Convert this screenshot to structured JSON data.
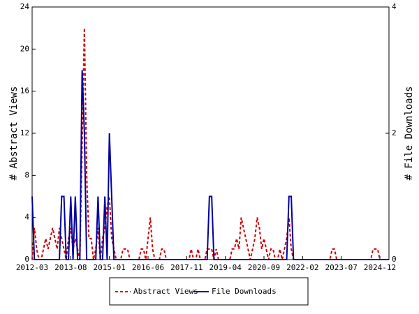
{
  "chart_data": {
    "type": "line",
    "x": [
      "2012-03",
      "2012-04",
      "2012-05",
      "2012-06",
      "2012-07",
      "2012-08",
      "2012-09",
      "2012-10",
      "2012-11",
      "2012-12",
      "2013-01",
      "2013-02",
      "2013-03",
      "2013-04",
      "2013-05",
      "2013-06",
      "2013-07",
      "2013-08",
      "2013-09",
      "2013-10",
      "2013-11",
      "2013-12",
      "2014-01",
      "2014-02",
      "2014-03",
      "2014-04",
      "2014-05",
      "2014-06",
      "2014-07",
      "2014-08",
      "2014-09",
      "2014-10",
      "2014-11",
      "2014-12",
      "2015-01",
      "2015-02",
      "2015-03",
      "2015-04",
      "2015-05",
      "2015-06",
      "2015-07",
      "2015-08",
      "2015-09",
      "2015-10",
      "2015-11",
      "2015-12",
      "2016-01",
      "2016-02",
      "2016-03",
      "2016-04",
      "2016-05",
      "2016-06",
      "2016-07",
      "2016-08",
      "2016-09",
      "2016-10",
      "2016-11",
      "2016-12",
      "2017-01",
      "2017-02",
      "2017-03",
      "2017-04",
      "2017-05",
      "2017-06",
      "2017-07",
      "2017-08",
      "2017-09",
      "2017-10",
      "2017-11",
      "2017-12",
      "2018-01",
      "2018-02",
      "2018-03",
      "2018-04",
      "2018-05",
      "2018-06",
      "2018-07",
      "2018-08",
      "2018-09",
      "2018-10",
      "2018-11",
      "2018-12",
      "2019-01",
      "2019-02",
      "2019-03",
      "2019-04",
      "2019-05",
      "2019-06",
      "2019-07",
      "2019-08",
      "2019-09",
      "2019-10",
      "2019-11",
      "2019-12",
      "2020-01",
      "2020-02",
      "2020-03",
      "2020-04",
      "2020-05",
      "2020-06",
      "2020-07",
      "2020-08",
      "2020-09",
      "2020-10",
      "2020-11",
      "2020-12",
      "2021-01",
      "2021-02",
      "2021-03",
      "2021-04",
      "2021-05",
      "2021-06",
      "2021-07",
      "2021-08",
      "2021-09",
      "2021-10",
      "2021-11",
      "2021-12",
      "2022-01",
      "2022-02",
      "2022-03",
      "2022-04",
      "2022-05",
      "2022-06",
      "2022-07",
      "2022-08",
      "2022-09",
      "2022-10",
      "2022-11",
      "2022-12",
      "2023-01",
      "2023-02",
      "2023-03",
      "2023-04",
      "2023-05",
      "2023-06",
      "2023-07",
      "2023-08",
      "2023-09",
      "2023-10",
      "2023-11",
      "2023-12",
      "2024-01",
      "2024-02",
      "2024-03",
      "2024-04",
      "2024-05",
      "2024-06",
      "2024-07",
      "2024-08",
      "2024-09",
      "2024-10",
      "2024-11",
      "2024-12",
      "2025-01",
      "2025-02",
      "2025-03",
      "2025-04"
    ],
    "xticks": [
      "2012-03",
      "2013-08",
      "2015-01",
      "2016-06",
      "2017-11",
      "2019-04",
      "2020-09",
      "2022-02",
      "2023-07",
      "2024-12"
    ],
    "ylabel": "# Abstract Views",
    "y2label": "# File Downloads",
    "ylim": [
      0,
      24
    ],
    "yticks": [
      0,
      4,
      8,
      12,
      16,
      20,
      24
    ],
    "y2lim": [
      0,
      4
    ],
    "y2ticks": [
      0,
      2,
      4
    ],
    "legend": "bottom",
    "series": [
      {
        "name": "Abstract Views",
        "color": "#cc0000",
        "dashed": true,
        "axis": "y",
        "values": [
          0,
          3,
          1,
          0,
          0,
          1,
          2,
          1,
          2,
          3,
          2,
          1,
          3,
          2,
          1,
          0,
          2,
          3,
          1,
          2,
          1,
          0,
          11,
          22,
          8,
          2,
          2,
          0,
          1,
          3,
          0,
          2,
          3,
          5,
          6,
          2,
          1,
          0,
          0,
          0,
          1,
          1,
          1,
          0,
          0,
          0,
          0,
          0,
          1,
          1,
          0,
          2,
          4,
          1,
          0,
          0,
          0,
          1,
          1,
          0,
          0,
          0,
          0,
          0,
          0,
          0,
          0,
          0,
          0,
          0,
          1,
          0,
          0,
          1,
          0,
          0,
          0,
          1,
          1,
          1,
          0,
          1,
          0,
          0,
          0,
          0,
          0,
          0,
          1,
          1,
          2,
          1,
          4,
          3,
          2,
          1,
          0,
          1,
          2,
          4,
          3,
          1,
          2,
          1,
          0,
          1,
          1,
          0,
          0,
          1,
          0,
          1,
          2,
          4,
          1,
          0,
          0,
          0,
          0,
          0,
          0,
          0,
          0,
          0,
          0,
          0,
          0,
          0,
          0,
          0,
          0,
          0,
          1,
          1,
          0,
          0,
          0,
          0,
          0,
          0,
          0,
          0,
          0,
          0,
          0,
          0,
          0,
          0,
          0,
          0,
          1,
          1,
          1,
          0,
          0,
          0,
          0,
          0
        ]
      },
      {
        "name": "File Downloads",
        "color": "#0000a0",
        "dashed": false,
        "axis": "y2",
        "values": [
          1,
          0,
          0,
          0,
          0,
          0,
          0,
          0,
          0,
          0,
          0,
          0,
          0,
          1,
          1,
          0,
          0,
          1,
          0,
          1,
          0,
          0,
          3,
          2,
          0,
          0,
          0,
          0,
          0,
          1,
          0,
          0,
          1,
          0,
          2,
          1,
          0,
          0,
          0,
          0,
          0,
          0,
          0,
          0,
          0,
          0,
          0,
          0,
          0,
          0,
          0,
          0,
          0,
          0,
          0,
          0,
          0,
          0,
          0,
          0,
          0,
          0,
          0,
          0,
          0,
          0,
          0,
          0,
          0,
          0,
          0,
          0,
          0,
          0,
          0,
          0,
          0,
          0,
          1,
          1,
          0,
          0,
          0,
          0,
          0,
          0,
          0,
          0,
          0,
          0,
          0,
          0,
          0,
          0,
          0,
          0,
          0,
          0,
          0,
          0,
          0,
          0,
          0,
          0,
          0,
          0,
          0,
          0,
          0,
          0,
          0,
          0,
          0,
          1,
          1,
          0,
          0,
          0,
          0,
          0,
          0,
          0,
          0,
          0,
          0,
          0,
          0,
          0,
          0,
          0,
          0,
          0,
          0,
          0,
          0,
          0,
          0,
          0,
          0,
          0,
          0,
          0,
          0,
          0,
          0,
          0,
          0,
          0,
          0,
          0,
          0,
          0,
          0,
          0,
          0,
          0,
          0,
          0
        ]
      }
    ]
  }
}
